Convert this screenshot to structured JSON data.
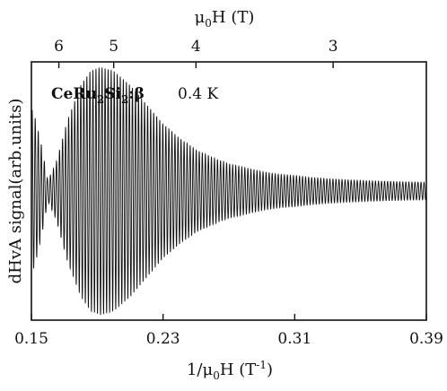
{
  "chart_data": {
    "type": "line",
    "x_axis": {
      "label_main": "1/μ",
      "label_sub": "0",
      "label_after": "H (T",
      "label_sup": "-1",
      "label_close": ")",
      "range": [
        0.15,
        0.39
      ],
      "ticks": [
        0.15,
        0.23,
        0.31,
        0.39
      ],
      "tick_labels": [
        "0.15",
        "0.23",
        "0.31",
        "0.39"
      ]
    },
    "top_axis": {
      "label_main": "μ",
      "label_sub": "0",
      "label_after": "H (T)",
      "ticks": [
        6,
        5,
        4,
        3
      ],
      "tick_labels": [
        "6",
        "5",
        "4",
        "3"
      ]
    },
    "y_axis": {
      "label": "dHvA signal(arb.units)",
      "range": [
        -1,
        1
      ],
      "tick_labels": []
    },
    "annotation": {
      "compound_parts": [
        "CeRu",
        "2",
        "Si",
        "2",
        ":β"
      ],
      "temperature": "0.4 K"
    },
    "series": [
      {
        "oscillation_count": 130,
        "envelope": {
          "x": [
            0.15,
            0.152,
            0.156,
            0.16,
            0.165,
            0.172,
            0.18,
            0.186,
            0.192,
            0.2,
            0.21,
            0.22,
            0.23,
            0.24,
            0.25,
            0.26,
            0.27,
            0.28,
            0.29,
            0.3,
            0.31,
            0.32,
            0.33,
            0.34,
            0.35,
            0.36,
            0.37,
            0.38,
            0.39
          ],
          "amplitude": [
            0.64,
            0.58,
            0.36,
            0.08,
            0.22,
            0.55,
            0.82,
            0.93,
            0.96,
            0.93,
            0.82,
            0.67,
            0.52,
            0.41,
            0.32,
            0.26,
            0.21,
            0.18,
            0.15,
            0.13,
            0.12,
            0.105,
            0.095,
            0.088,
            0.082,
            0.077,
            0.073,
            0.07,
            0.068
          ]
        }
      }
    ]
  }
}
